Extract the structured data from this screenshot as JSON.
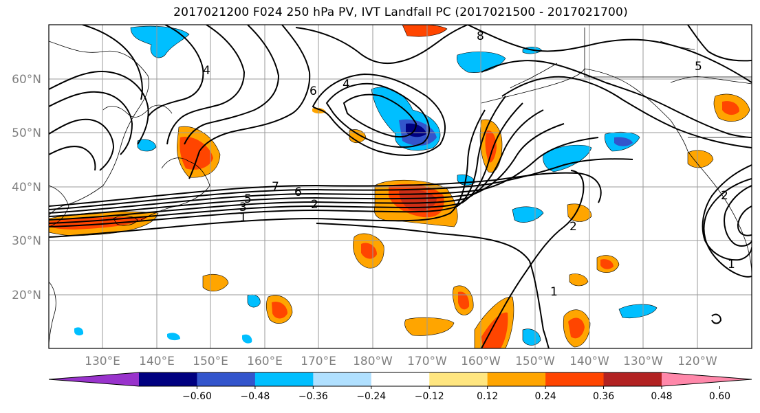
{
  "title": "2017021200 F024 250 hPa PV, IVT Landfall PC (2017021500 - 2017021700)",
  "lat_labels": [
    "60°N",
    "50°N",
    "40°N",
    "30°N",
    "20°N"
  ],
  "lon_labels": [
    "130°E",
    "140°E",
    "150°E",
    "160°E",
    "170°E",
    "180°W",
    "170°W",
    "160°W",
    "150°W",
    "140°W",
    "130°W",
    "120°W"
  ],
  "colorbar": {
    "ticks": [
      "−0.60",
      "−0.48",
      "−0.36",
      "−0.24",
      "−0.12",
      "0.12",
      "0.24",
      "0.36",
      "0.48",
      "0.60"
    ],
    "colors": [
      "#9933cc",
      "#000080",
      "#3355cc",
      "#00bfff",
      "#b0e0ff",
      "#ffffff",
      "#ffe680",
      "#ffa500",
      "#ff4500",
      "#b22222",
      "#ff88aa"
    ]
  },
  "contour_labels": [
    "1",
    "2",
    "3",
    "5",
    "6",
    "7",
    "4",
    "8",
    "1",
    "2",
    "6",
    "5",
    "4",
    "1",
    "2"
  ]
}
